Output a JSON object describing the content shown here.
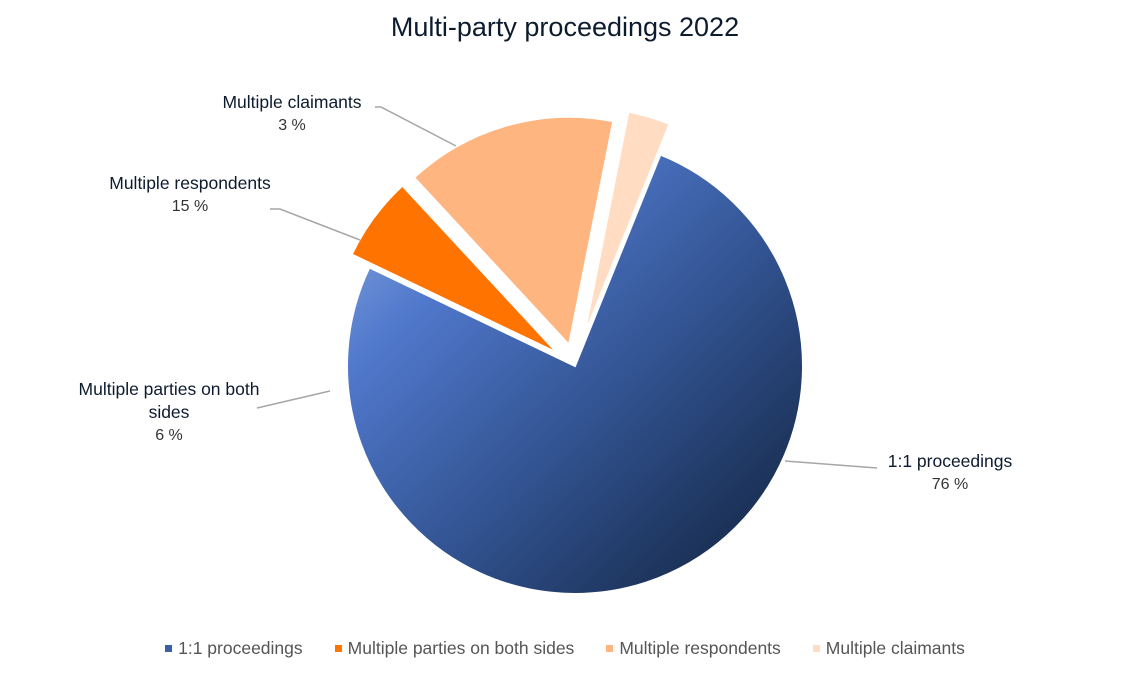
{
  "chart_data": {
    "type": "pie",
    "title": "Multi-party proceedings 2022",
    "categories": [
      "1:1 proceedings",
      "Multiple parties on both sides",
      "Multiple respondents",
      "Multiple claimants"
    ],
    "values": [
      76,
      6,
      15,
      3
    ],
    "value_labels": [
      "76 %",
      "6 %",
      "15 %",
      "3 %"
    ],
    "colors": [
      "#3a5fa8",
      "#ff7300",
      "#ffb57f",
      "#ffdcc2"
    ],
    "legend_position": "bottom"
  }
}
